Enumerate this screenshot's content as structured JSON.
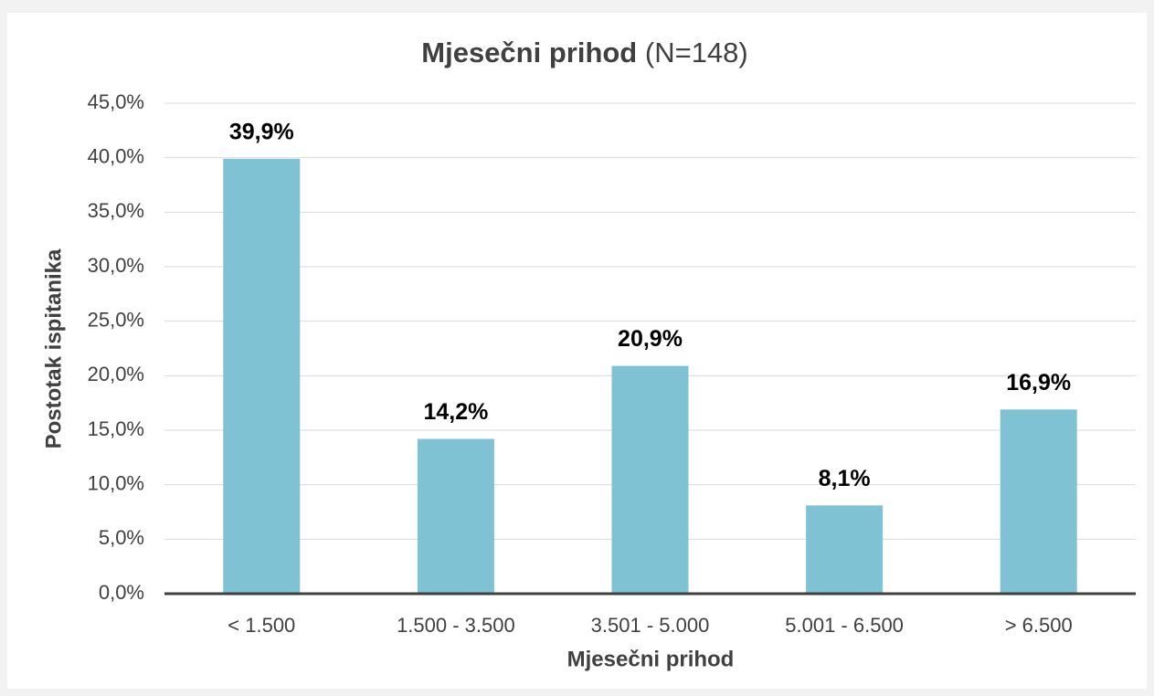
{
  "chart_data": {
    "type": "bar",
    "title": "Mjesečni prihod",
    "title_note": "(N=148)",
    "x_label": "Mjesečni prihod",
    "y_label": "Postotak ispitanika",
    "categories": [
      "< 1.500",
      "1.500 - 3.500",
      "3.501 - 5.000",
      "5.001 - 6.500",
      "> 6.500"
    ],
    "values": [
      39.9,
      14.2,
      20.9,
      8.1,
      16.9
    ],
    "value_labels": [
      "39,9%",
      "14,2%",
      "20,9%",
      "8,1%",
      "16,9%"
    ],
    "color": "#7fc2d3",
    "ylim": [
      0,
      45
    ],
    "yticks": [
      {
        "value": 0,
        "label": "0,0%"
      },
      {
        "value": 5,
        "label": "5,0%"
      },
      {
        "value": 10,
        "label": "10,0%"
      },
      {
        "value": 15,
        "label": "15,0%"
      },
      {
        "value": 20,
        "label": "20,0%"
      },
      {
        "value": 25,
        "label": "25,0%"
      },
      {
        "value": 30,
        "label": "30,0%"
      },
      {
        "value": 35,
        "label": "35,0%"
      },
      {
        "value": 40,
        "label": "40,0%"
      },
      {
        "value": 45,
        "label": "45,0%"
      }
    ],
    "grid": true
  }
}
